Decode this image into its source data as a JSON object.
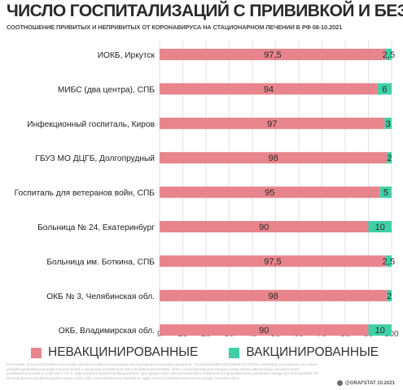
{
  "header": {
    "title": "ЧИСЛО ГОСПИТАЛИЗАЦИЙ С ПРИВИВКОЙ И БЕЗ",
    "subtitle": "СООТНОШЕНИЕ ПРИВИТЫХ И НЕПРИВИТЫХ ОТ КОРОНАВИРУСА НА СТАЦИОНАРНОМ ЛЕЧЕНИИ В РФ 08-10.2021"
  },
  "chart_data": {
    "type": "bar",
    "orientation": "horizontal",
    "stacked": true,
    "title": "ЧИСЛО ГОСПИТАЛИЗАЦИЙ С ПРИВИВКОЙ И БЕЗ",
    "subtitle": "СООТНОШЕНИЕ ПРИВИТЫХ И НЕПРИВИТЫХ ОТ КОРОНАВИРУСА НА СТАЦИОНАРНОМ ЛЕЧЕНИИ В РФ 08-10.2021",
    "categories": [
      "ИОКБ, Иркутск",
      "МИБС (два центра), СПБ",
      "Инфекционный госпиталь, Киров",
      "ГБУЗ МО ДЦГБ, Долгопрудный",
      "Госпиталь для ветеранов войн, СПБ",
      "Больница № 24, Екатеринбург",
      "Больница им. Боткина, СПБ",
      "ОКБ № 3, Челябинская обл.",
      "ОКБ, Владимирская обл."
    ],
    "series": [
      {
        "name": "НЕВАКЦИНИРОВАННЫЕ",
        "color": "#e8848c",
        "values": [
          97.5,
          94,
          97,
          98,
          95,
          90,
          97.5,
          98,
          90
        ],
        "labels": [
          "97,5",
          "94",
          "97",
          "98",
          "95",
          "90",
          "97,5",
          "98",
          "90"
        ]
      },
      {
        "name": "ВАКЦИНИРОВАННЫЕ",
        "color": "#3fd0a6",
        "values": [
          2.5,
          6,
          3,
          2,
          5,
          10,
          2.5,
          2,
          10
        ],
        "labels": [
          "2,5",
          "6",
          "3",
          "2",
          "5",
          "10",
          "2,5",
          "2",
          "10"
        ]
      }
    ],
    "xlim": [
      0,
      100
    ],
    "xticks": [
      "0",
      "10",
      "20",
      "30",
      "40",
      "50",
      "60",
      "70",
      "80",
      "90",
      "100"
    ],
    "grid": true,
    "legend_position": "bottom"
  },
  "footer": {
    "sources": "Источники: prayv.ru/2021/09/ocvid-naslali-polnosti-privitykh-koronavirusa-aredi-gospitalizirovannykh-patsientov/; 74.ru/text/health/2021/09/08/70123376/ peterburg2.ru/news/vaccine-chisla-privitykh-gospitalizirovannykh-kotorye-lechat-v-stacionare-101398.html; 66.ru/health/news/244845/; kirov1.news/article/gosdmeskaya-novaia-vkhod-sistemi-detaia-privitykh-sredi-gospitalizirovannykh-s-covid-19-v-7-8-2/; glds-vysaka.ru/news/meldkaoso/65327-igov-sipaje-chislo-vakcinirovannykh-v-infekcionnom-gospitale-sredi-pacientov/; kaluga-prk.ru/news/2021-07-30-vyse-gotovo-pandemii-spaslo-usapa-3.html; bbc.com/russian/news-58230076; ogiih.ru/2021/10/08/koronavirus-ne-poruge-chetverto-vilno/",
    "credit": "@GRAFSTAT 10.2021"
  }
}
